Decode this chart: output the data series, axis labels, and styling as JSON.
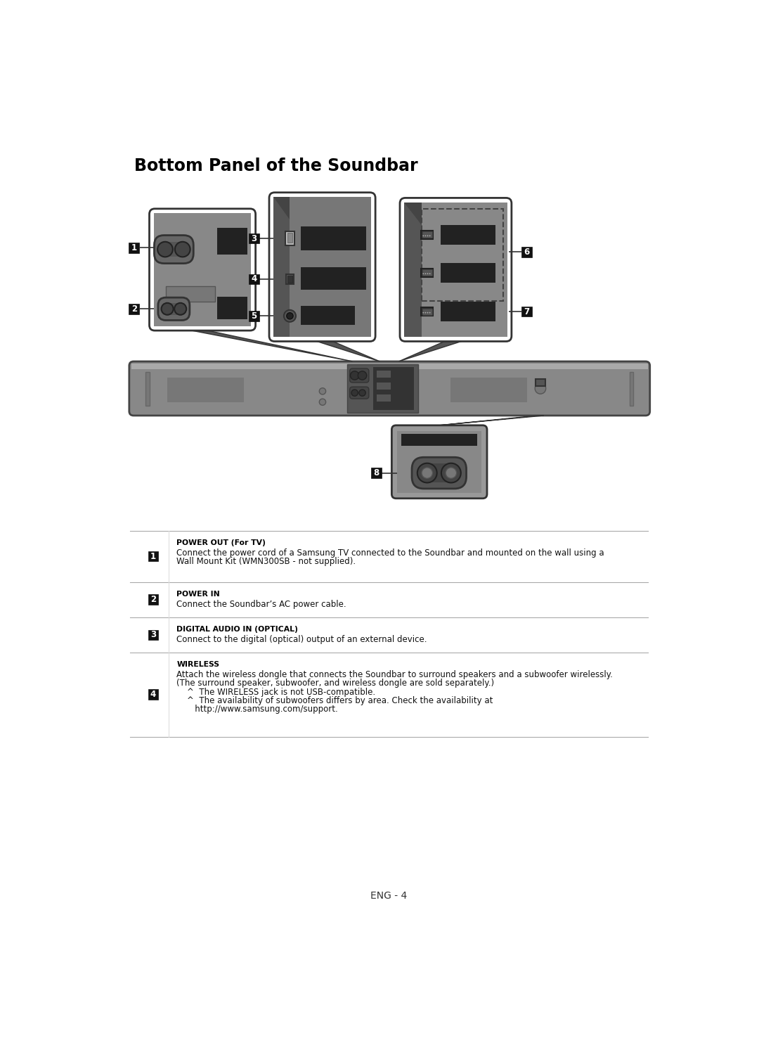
{
  "title": "Bottom Panel of the Soundbar",
  "bg_color": "#ffffff",
  "title_fontsize": 17,
  "table_entries": [
    {
      "num": "1",
      "header": "POWER OUT (For TV)",
      "body": "Connect the power cord of a Samsung TV connected to the Soundbar and mounted on the wall using a\nWall Mount Kit (WMN300SB - not supplied)."
    },
    {
      "num": "2",
      "header": "POWER IN",
      "body": "Connect the Soundbar’s AC power cable."
    },
    {
      "num": "3",
      "header": "DIGITAL AUDIO IN (OPTICAL)",
      "body": "Connect to the digital (optical) output of an external device."
    },
    {
      "num": "4",
      "header": "WIRELESS",
      "body": "Attach the wireless dongle that connects the Soundbar to surround speakers and a subwoofer wirelessly.\n(The surround speaker, subwoofer, and wireless dongle are sold separately.)\n    ^  The WIRELESS jack is not USB-compatible.\n    ^  The availability of subwoofers differs by area. Check the availability at\n       http://www.samsung.com/support."
    }
  ],
  "page_label": "ENG - 4"
}
